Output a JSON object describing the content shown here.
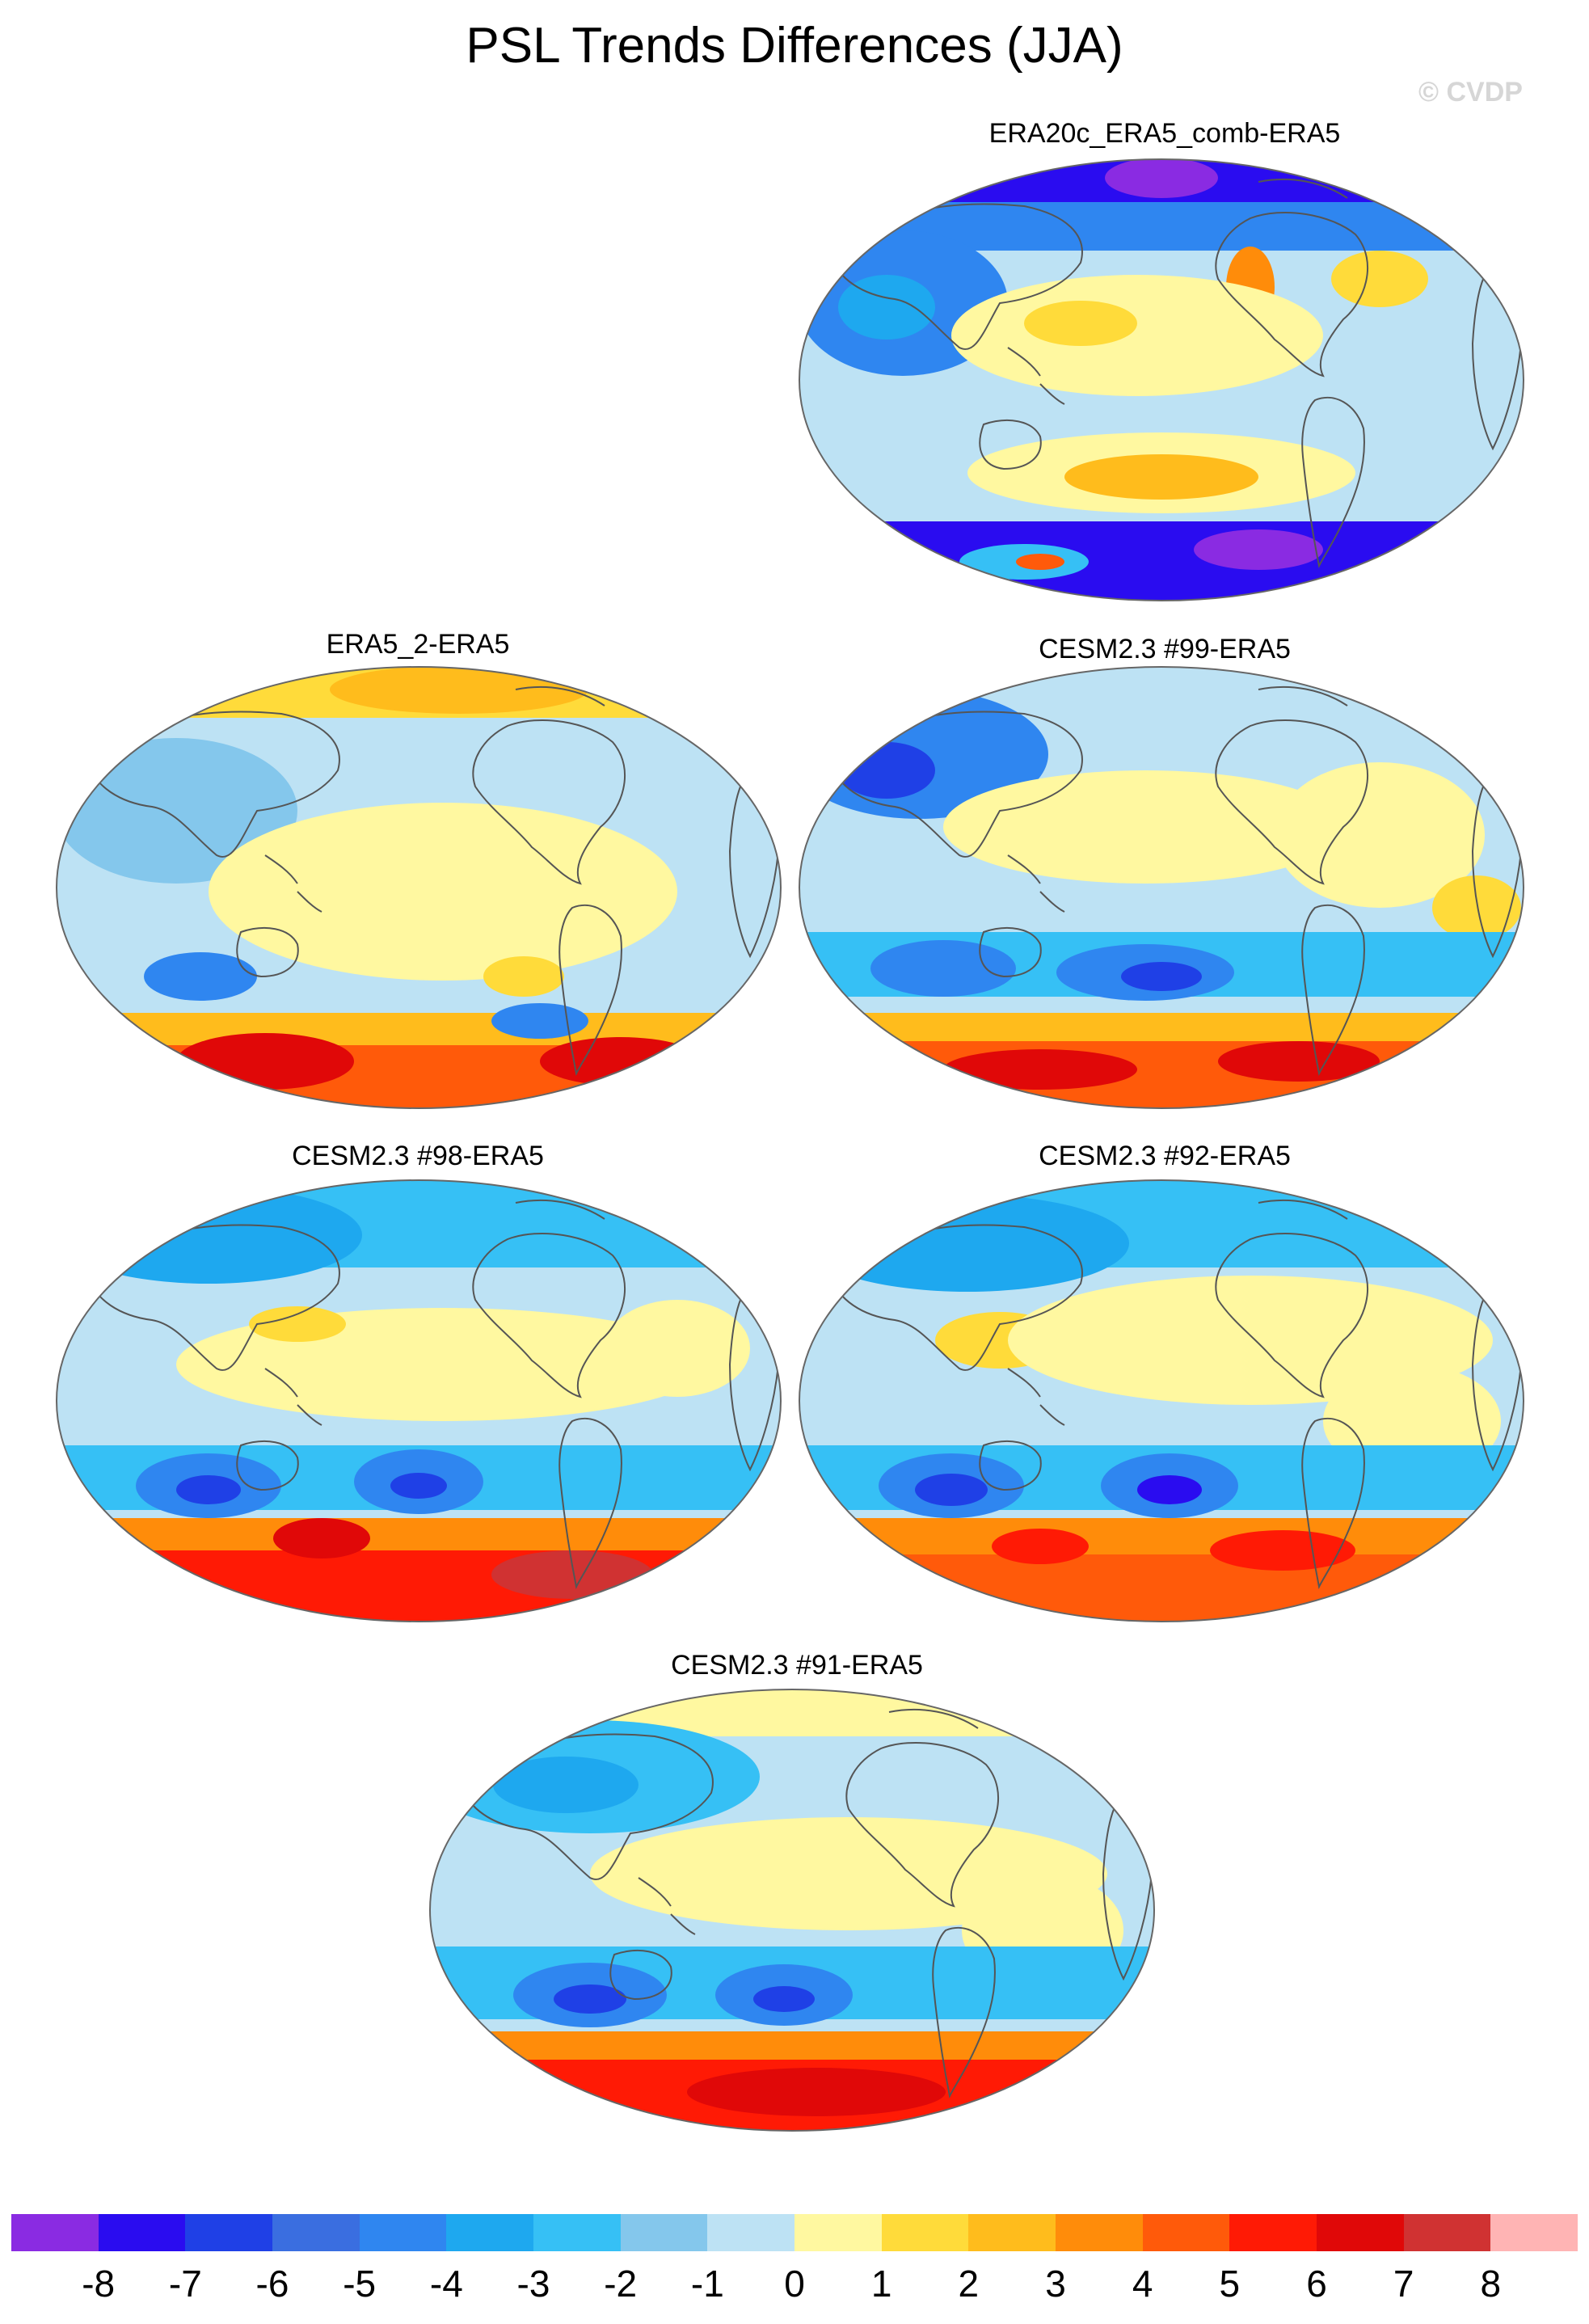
{
  "title": "PSL Trends Differences (JJA)",
  "watermark": "© CVDP",
  "panels": [
    {
      "id": "p1",
      "title": "ERA20c_ERA5_comb-ERA5"
    },
    {
      "id": "p2",
      "title": "ERA5_2-ERA5"
    },
    {
      "id": "p3",
      "title": "CESM2.3 #99-ERA5"
    },
    {
      "id": "p4",
      "title": "CESM2.3 #98-ERA5"
    },
    {
      "id": "p5",
      "title": "CESM2.3 #92-ERA5"
    },
    {
      "id": "p6",
      "title": "CESM2.3 #91-ERA5"
    }
  ],
  "colorbar": {
    "colors": [
      "#8a2be2",
      "#2a0cf0",
      "#1f40e6",
      "#3a6ee0",
      "#2f86f0",
      "#1ea8ef",
      "#36c0f5",
      "#84c7ec",
      "#bde2f4",
      "#fff8a0",
      "#ffdb3a",
      "#ffbc1c",
      "#ff8c0a",
      "#ff5a0a",
      "#ff1a05",
      "#e00808",
      "#d03232",
      "#ffb4b4"
    ],
    "labels": [
      "-8",
      "-7",
      "-6",
      "-5",
      "-4",
      "-3",
      "-2",
      "-1",
      "0",
      "1",
      "2",
      "3",
      "4",
      "5",
      "6",
      "7",
      "8"
    ]
  },
  "chart_data": {
    "type": "heatmap",
    "title": "PSL Trends Differences (JJA)",
    "panels": [
      "ERA20c_ERA5_comb-ERA5",
      "ERA5_2-ERA5",
      "CESM2.3 #99-ERA5",
      "CESM2.3 #98-ERA5",
      "CESM2.3 #92-ERA5",
      "CESM2.3 #91-ERA5"
    ],
    "colorbar_levels": [
      -8,
      -7,
      -6,
      -5,
      -4,
      -3,
      -2,
      -1,
      0,
      1,
      2,
      3,
      4,
      5,
      6,
      7,
      8
    ]
  }
}
